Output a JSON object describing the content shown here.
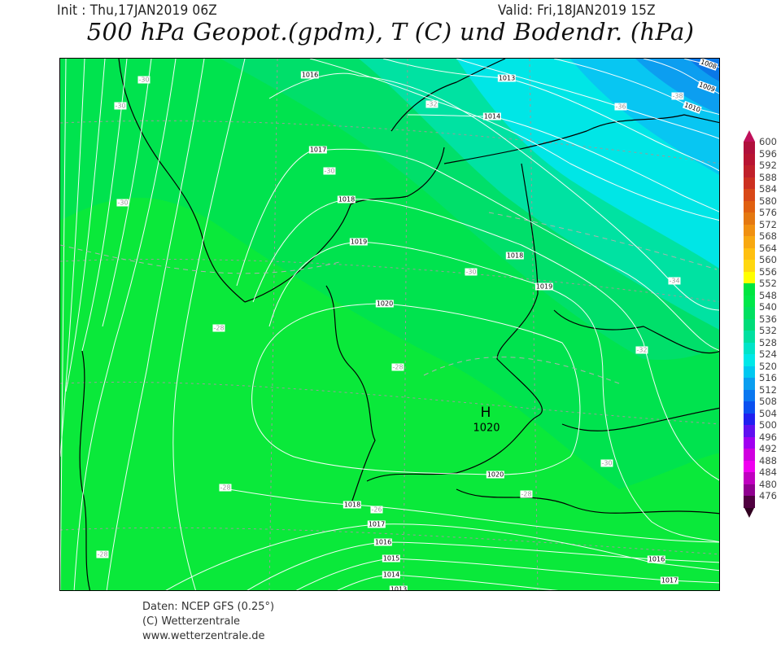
{
  "header": {
    "init": "Init : Thu,17JAN2019 06Z",
    "valid": "Valid: Fri,18JAN2019 15Z",
    "title": "500 hPa Geopot.(gpdm), T (C) und Bodendr. (hPa)"
  },
  "map": {
    "band_colors": {
      "548": "#0ae93a",
      "544": "#00e34e",
      "540": "#00df6a",
      "532": "#00e2a2",
      "524": "#00e6e6",
      "520": "#08c6f2",
      "516": "#0c9ef0",
      "512": "#0a78e8"
    },
    "isobar_labels": [
      "1016",
      "1017",
      "1018",
      "1019",
      "1020",
      "1013",
      "1014",
      "1018",
      "1019",
      "1020",
      "1018",
      "1017",
      "1016",
      "1015",
      "1014",
      "1013",
      "1016",
      "1017",
      "1008",
      "1009",
      "1010"
    ],
    "temp_labels": [
      "-30",
      "-30",
      "-30",
      "-30",
      "-32",
      "-36",
      "-38",
      "-30",
      "-34",
      "-32",
      "-28",
      "-28",
      "-28",
      "-30",
      "-28",
      "-26",
      "-28"
    ],
    "high": {
      "symbol": "H",
      "pressure": "1020"
    }
  },
  "legend": {
    "unit_values": [
      "600",
      "596",
      "592",
      "588",
      "584",
      "580",
      "576",
      "572",
      "568",
      "564",
      "560",
      "556",
      "552",
      "548",
      "540",
      "536",
      "532",
      "528",
      "524",
      "520",
      "516",
      "512",
      "508",
      "504",
      "500",
      "496",
      "492",
      "488",
      "484",
      "480",
      "476"
    ],
    "colors": [
      "#b0103c",
      "#b81432",
      "#c0202a",
      "#cc3020",
      "#d84818",
      "#e06010",
      "#e47810",
      "#f09010",
      "#f8a810",
      "#ffc010",
      "#ffd810",
      "#ffff00",
      "#00e640",
      "#00e84a",
      "#00e060",
      "#00dc78",
      "#00e0a0",
      "#00e4c8",
      "#00e8e8",
      "#00c8f0",
      "#0a9ef0",
      "#0a78f0",
      "#0a50f0",
      "#2020f0",
      "#6010f0",
      "#a000f0",
      "#d000e0",
      "#f000f0",
      "#c000c0",
      "#900090",
      "#500040"
    ]
  },
  "footer": {
    "line1": "Daten: NCEP GFS (0.25°)",
    "line2": "(C) Wetterzentrale",
    "line3": "www.wetterzentrale.de"
  }
}
